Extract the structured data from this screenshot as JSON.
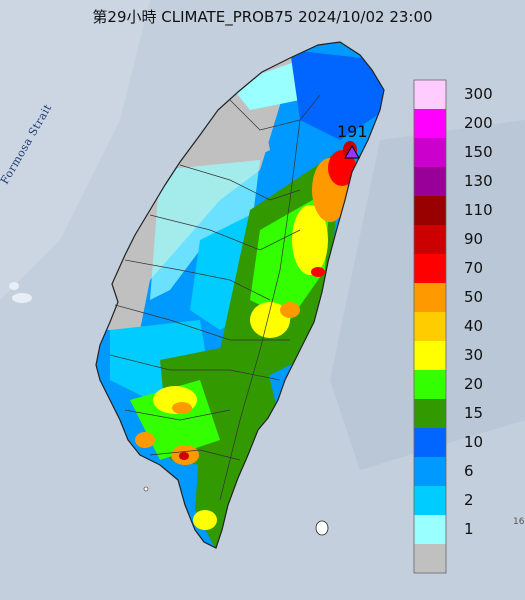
{
  "map": {
    "title": "第29小時  CLIMATE_PROB75 2024/10/02 23:00",
    "strait_label": "Formosa Strait",
    "max_value_label": "191",
    "corner_label": "16"
  },
  "legend": {
    "entries": [
      {
        "label": "300",
        "color": "#ffccff"
      },
      {
        "label": "200",
        "color": "#ff00ff"
      },
      {
        "label": "150",
        "color": "#cc00cc"
      },
      {
        "label": "130",
        "color": "#990099"
      },
      {
        "label": "110",
        "color": "#990000"
      },
      {
        "label": "90",
        "color": "#cc0000"
      },
      {
        "label": "70",
        "color": "#ff0000"
      },
      {
        "label": "50",
        "color": "#ff9900"
      },
      {
        "label": "40",
        "color": "#ffcc00"
      },
      {
        "label": "30",
        "color": "#ffff00"
      },
      {
        "label": "20",
        "color": "#33ff00"
      },
      {
        "label": "15",
        "color": "#339900"
      },
      {
        "label": "10",
        "color": "#0066ff"
      },
      {
        "label": "6",
        "color": "#0099ff"
      },
      {
        "label": "2",
        "color": "#00ccff"
      },
      {
        "label": "1",
        "color": "#99ffff"
      },
      {
        "label": "",
        "color": "#c0c0c0"
      }
    ]
  }
}
